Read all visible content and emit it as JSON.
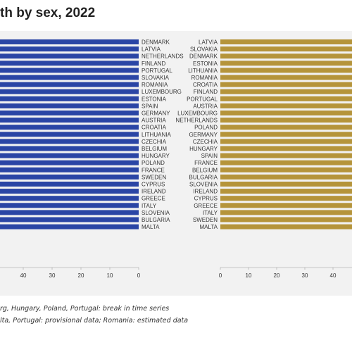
{
  "title": "th by sex, 2022",
  "notes": [
    "rg, Hungary, Poland, Portugal: break in time series",
    "lta, Portugal: provisional data; Romania: estimated data"
  ],
  "colors": {
    "left_bar": "#2a45a5",
    "right_bar": "#b5943a",
    "panel": "#f2f2f2",
    "axis_text": "#333333"
  },
  "chart_data": [
    {
      "type": "bar",
      "orientation": "horizontal",
      "direction": "right-to-left",
      "categories": [
        "DENMARK",
        "LATVIA",
        "NETHERLANDS",
        "FINLAND",
        "PORTUGAL",
        "SLOVAKIA",
        "ROMANIA",
        "LUXEMBOURG",
        "ESTONIA",
        "SPAIN",
        "GERMANY",
        "AUSTRIA",
        "CROATIA",
        "LITHUANIA",
        "CZECHIA",
        "BELGIUM",
        "HUNGARY",
        "POLAND",
        "FRANCE",
        "SWEDEN",
        "CYPRUS",
        "IRELAND",
        "GREECE",
        "ITALY",
        "SLOVENIA",
        "BULGARIA",
        "MALTA"
      ],
      "xticks": [
        40,
        30,
        20,
        10,
        0
      ],
      "xlim": [
        0,
        48
      ],
      "grid": false
    },
    {
      "type": "bar",
      "orientation": "horizontal",
      "direction": "left-to-right",
      "categories": [
        "LATVIA",
        "SLOVAKIA",
        "DENMARK",
        "ESTONIA",
        "LITHUANIA",
        "ROMANIA",
        "CROATIA",
        "FINLAND",
        "PORTUGAL",
        "AUSTRIA",
        "LUXEMBOURG",
        "NETHERLANDS",
        "POLAND",
        "GERMANY",
        "CZECHIA",
        "HUNGARY",
        "SPAIN",
        "FRANCE",
        "BELGIUM",
        "BULGARIA",
        "SLOVENIA",
        "IRELAND",
        "CYPRUS",
        "GREECE",
        "ITALY",
        "SWEDEN",
        "MALTA"
      ],
      "xticks": [
        0,
        10,
        20,
        30,
        40
      ],
      "xlim": [
        0,
        45
      ],
      "grid": false
    }
  ]
}
